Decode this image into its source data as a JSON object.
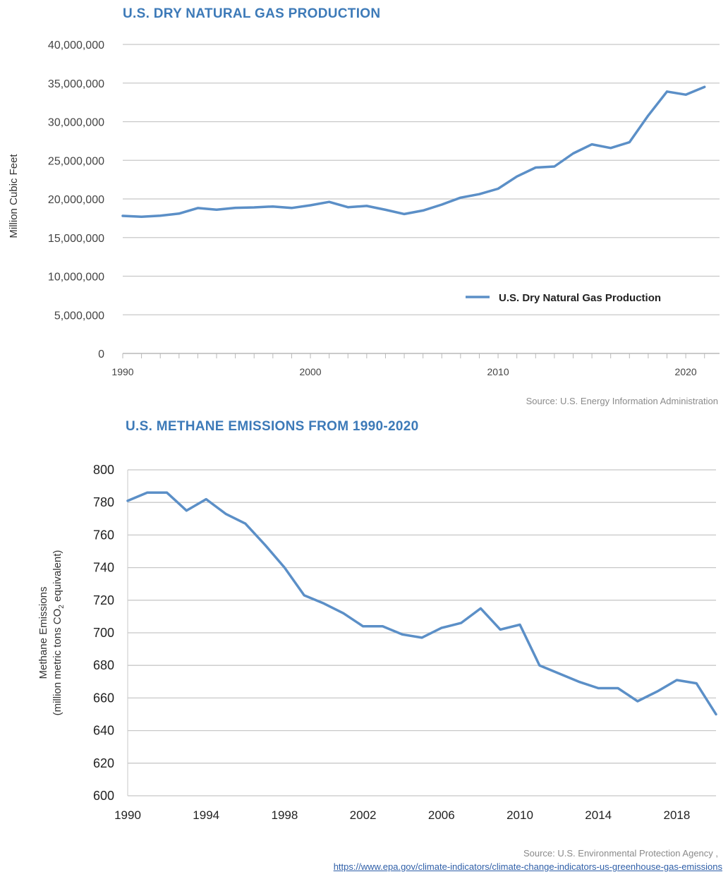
{
  "colors": {
    "line": "#5b8fc7",
    "title": "#3d7ab8",
    "grid": "#c8c8c8"
  },
  "chart_data": [
    {
      "type": "line",
      "title": "U.S. DRY NATURAL GAS PRODUCTION",
      "xlabel": "",
      "ylabel": "Million Cubic Feet",
      "xlim": [
        1990,
        2021.8
      ],
      "ylim": [
        0,
        40000000
      ],
      "yticks": [
        0,
        5000000,
        10000000,
        15000000,
        20000000,
        25000000,
        30000000,
        35000000,
        40000000
      ],
      "ytick_labels": [
        "0",
        "5,000,000",
        "10,000,000",
        "15,000,000",
        "20,000,000",
        "25,000,000",
        "30,000,000",
        "35,000,000",
        "40,000,000"
      ],
      "xticks": [
        1990,
        2000,
        2010,
        2020
      ],
      "xtick_labels": [
        "1990",
        "2000",
        "2010",
        "2020"
      ],
      "legend": {
        "position": "bottom-right",
        "entries": [
          "U.S. Dry Natural Gas Production"
        ]
      },
      "grid": true,
      "series": [
        {
          "name": "U.S. Dry Natural Gas Production",
          "x": [
            1990,
            1991,
            1992,
            1993,
            1994,
            1995,
            1996,
            1997,
            1998,
            1999,
            2000,
            2001,
            2002,
            2003,
            2004,
            2005,
            2006,
            2007,
            2008,
            2009,
            2010,
            2011,
            2012,
            2013,
            2014,
            2015,
            2016,
            2017,
            2018,
            2019,
            2020,
            2021
          ],
          "values": [
            17810000,
            17700000,
            17840000,
            18100000,
            18820000,
            18600000,
            18850000,
            18900000,
            19020000,
            18830000,
            19180000,
            19620000,
            18930000,
            19100000,
            18590000,
            18050000,
            18500000,
            19270000,
            20160000,
            20620000,
            21320000,
            22900000,
            24060000,
            24200000,
            25890000,
            27070000,
            26590000,
            27340000,
            30790000,
            33900000,
            33500000,
            34500000
          ]
        }
      ],
      "source": "Source: U.S. Energy Information Administration"
    },
    {
      "type": "line",
      "title": "U.S. METHANE EMISSIONS FROM 1990-2020",
      "xlabel": "",
      "ylabel_line1": "Methane Emissions",
      "ylabel_line2": "(million metric tons CO",
      "ylabel_sub": "2",
      "ylabel_line2_end": " equivalent)",
      "xlim": [
        1990,
        2020
      ],
      "ylim": [
        600,
        800
      ],
      "yticks": [
        600,
        620,
        640,
        660,
        680,
        700,
        720,
        740,
        760,
        780,
        800
      ],
      "ytick_labels": [
        "600",
        "620",
        "640",
        "660",
        "680",
        "700",
        "720",
        "740",
        "760",
        "780",
        "800"
      ],
      "xticks": [
        1990,
        1994,
        1998,
        2002,
        2006,
        2010,
        2014,
        2018
      ],
      "xtick_labels": [
        "1990",
        "1994",
        "1998",
        "2002",
        "2006",
        "2010",
        "2014",
        "2018"
      ],
      "grid": true,
      "series": [
        {
          "x": [
            1990,
            1991,
            1992,
            1993,
            1994,
            1995,
            1996,
            1997,
            1998,
            1999,
            2000,
            2001,
            2002,
            2003,
            2004,
            2005,
            2006,
            2007,
            2008,
            2009,
            2010,
            2011,
            2012,
            2013,
            2014,
            2015,
            2016,
            2017,
            2018,
            2019,
            2020
          ],
          "values": [
            781,
            786,
            786,
            775,
            782,
            773,
            767,
            754,
            740,
            723,
            718,
            712,
            704,
            704,
            699,
            697,
            703,
            706,
            715,
            702,
            705,
            680,
            675,
            670,
            666,
            666,
            658,
            664,
            671,
            669,
            650
          ]
        }
      ],
      "source": "Source: U.S. Environmental Protection Agency ,",
      "source_url": "https://www.epa.gov/climate-indicators/climate-change-indicators-us-greenhouse-gas-emissions"
    }
  ]
}
